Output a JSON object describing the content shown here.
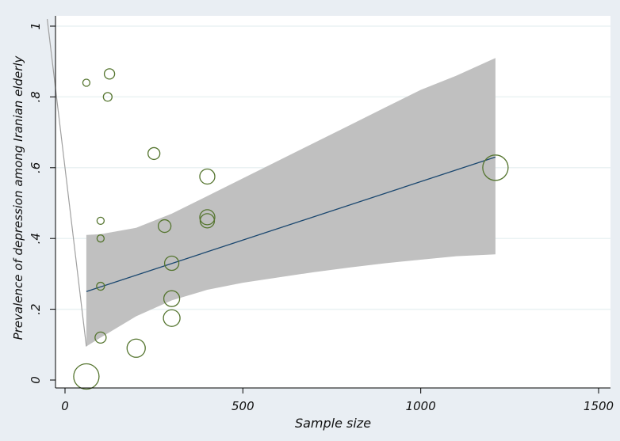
{
  "chart_data": {
    "type": "scatter",
    "title": "",
    "xlabel": "Sample size",
    "ylabel": "Prevalence of depression among Iranian elderly",
    "xlim": [
      0,
      1500
    ],
    "ylim": [
      0,
      1
    ],
    "xticks": [
      0,
      500,
      1000,
      1500
    ],
    "xtick_labels": [
      "0",
      "500",
      "1000",
      "1500"
    ],
    "yticks": [
      0,
      0.2,
      0.4,
      0.6,
      0.8,
      1
    ],
    "ytick_labels": [
      "0",
      ".2",
      ".4",
      ".6",
      ".8",
      "1"
    ],
    "grid": true,
    "legend": "none",
    "points": [
      {
        "x": 60,
        "y": 0.84,
        "r": 4.5
      },
      {
        "x": 125,
        "y": 0.865,
        "r": 6.5
      },
      {
        "x": 120,
        "y": 0.8,
        "r": 5.5
      },
      {
        "x": 100,
        "y": 0.45,
        "r": 4.5
      },
      {
        "x": 100,
        "y": 0.4,
        "r": 4.5
      },
      {
        "x": 100,
        "y": 0.265,
        "r": 5
      },
      {
        "x": 100,
        "y": 0.12,
        "r": 7
      },
      {
        "x": 60,
        "y": 0.01,
        "r": 16
      },
      {
        "x": 250,
        "y": 0.64,
        "r": 7.5
      },
      {
        "x": 280,
        "y": 0.435,
        "r": 8
      },
      {
        "x": 300,
        "y": 0.33,
        "r": 9
      },
      {
        "x": 300,
        "y": 0.23,
        "r": 10
      },
      {
        "x": 300,
        "y": 0.175,
        "r": 10.5
      },
      {
        "x": 200,
        "y": 0.09,
        "r": 11.5
      },
      {
        "x": 400,
        "y": 0.575,
        "r": 9.5
      },
      {
        "x": 400,
        "y": 0.46,
        "r": 9.5
      },
      {
        "x": 400,
        "y": 0.45,
        "r": 9
      },
      {
        "x": 1210,
        "y": 0.6,
        "r": 16
      }
    ],
    "fit_line": {
      "x": [
        60,
        1210
      ],
      "y": [
        0.25,
        0.63
      ]
    },
    "confidence_band": {
      "x": [
        60,
        100,
        200,
        300,
        400,
        500,
        600,
        700,
        800,
        900,
        1000,
        1100,
        1210
      ],
      "upper": [
        0.41,
        0.412,
        0.43,
        0.47,
        0.52,
        0.57,
        0.62,
        0.67,
        0.72,
        0.77,
        0.82,
        0.86,
        0.91
      ],
      "lower": [
        0.095,
        0.12,
        0.18,
        0.225,
        0.255,
        0.275,
        0.29,
        0.305,
        0.318,
        0.33,
        0.34,
        0.35,
        0.355
      ]
    },
    "extra_line": {
      "x": [
        -50,
        60
      ],
      "y": [
        1.02,
        0.095
      ]
    },
    "colors": {
      "background": "#e9eef3",
      "plot_area": "#ffffff",
      "grid": "#eaf2f3",
      "band": "#c0c0c0",
      "fit_line": "#1a476f",
      "markers": "#55752f",
      "extra_line": "#a0a0a0",
      "axis": "#000000"
    }
  }
}
